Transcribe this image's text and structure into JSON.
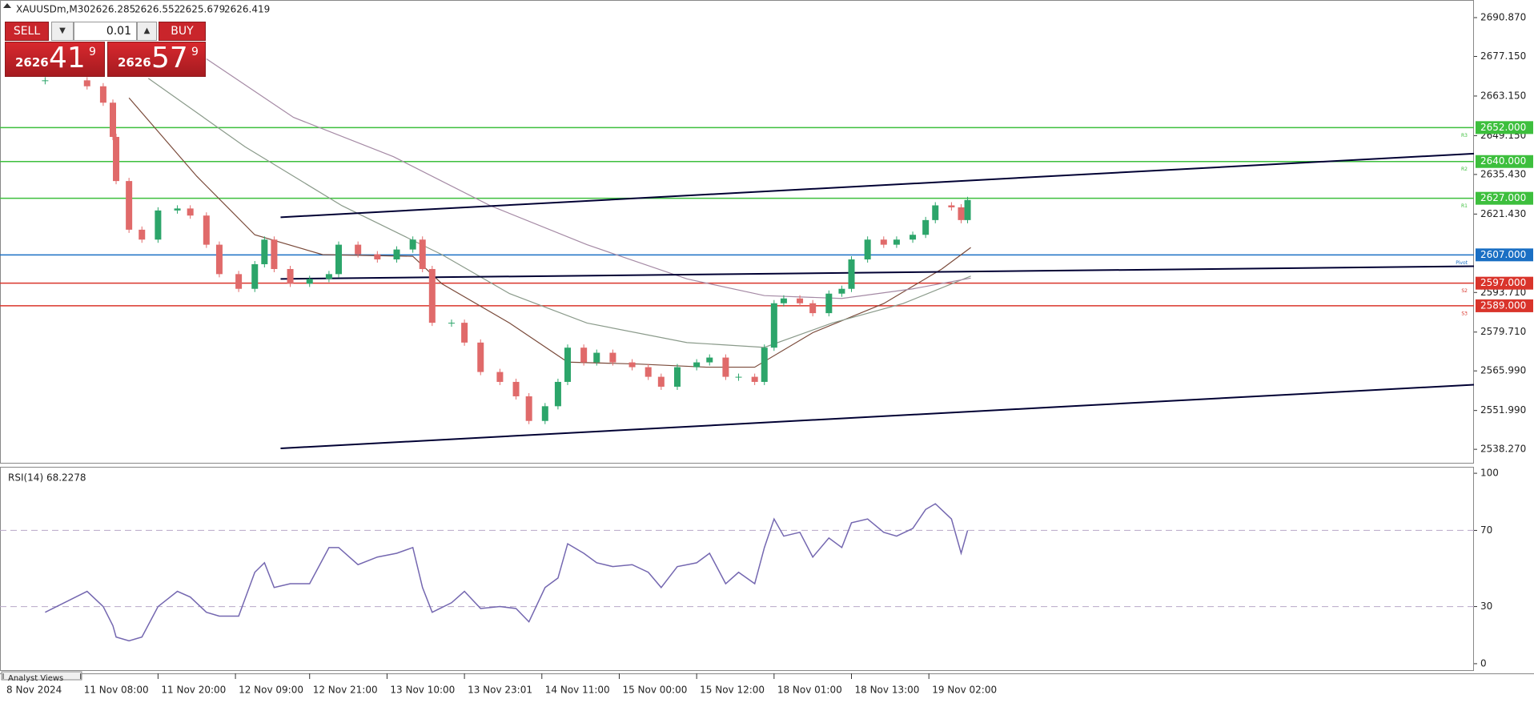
{
  "window": {
    "symbol": "XAUUSDm,M30",
    "quote": [
      2626.285,
      2626.552,
      2625.679,
      2626.419
    ],
    "bottom_tab": "Analyst Views"
  },
  "trade_panel": {
    "sell": "SELL",
    "buy": "BUY",
    "volume": "0.01",
    "bid": {
      "big": "2626",
      "main": "41",
      "sup": "9"
    },
    "ask": {
      "big": "2626",
      "main": "57",
      "sup": "9"
    }
  },
  "chart_data": {
    "type": "candlestick",
    "up_color": "#2ca56a",
    "down_color": "#e06a6a",
    "x": [
      14,
      27,
      32,
      35,
      36,
      40,
      44,
      49,
      55,
      59,
      64,
      68,
      74,
      79,
      82,
      85,
      90,
      96,
      102,
      105,
      111,
      117,
      123,
      128,
      131,
      134,
      140,
      144,
      149,
      155,
      160,
      164,
      169,
      173,
      176,
      181,
      185,
      190,
      196,
      201,
      205,
      210,
      216,
      220,
      225,
      229,
      234,
      237,
      240,
      243,
      248,
      252,
      257,
      261,
      264,
      269,
      274,
      278,
      283,
      287,
      290,
      295,
      298,
      300
    ],
    "values": [
      2668.7,
      2666.6,
      2660.8,
      2648.7,
      2633.1,
      2615.9,
      2612.4,
      2622.7,
      2623.4,
      2620.9,
      2610.6,
      2600.2,
      2595.0,
      2603.7,
      2612.4,
      2602.0,
      2596.8,
      2598.5,
      2600.2,
      2610.6,
      2607.2,
      2605.4,
      2608.9,
      2612.4,
      2602.0,
      2583.0,
      2583.0,
      2576.0,
      2565.6,
      2562.1,
      2557.0,
      2548.3,
      2553.5,
      2562.1,
      2574.2,
      2569.0,
      2572.4,
      2569.0,
      2567.3,
      2563.9,
      2560.4,
      2567.3,
      2569.0,
      2570.7,
      2563.9,
      2563.9,
      2562.1,
      2574.2,
      2589.9,
      2591.6,
      2589.9,
      2586.4,
      2593.3,
      2595.0,
      2605.4,
      2612.4,
      2610.6,
      2612.4,
      2614.1,
      2619.3,
      2624.5,
      2623.8,
      2619.3,
      2626.4
    ],
    "xlim": [
      0,
      457
    ],
    "ylim": [
      2533.5,
      2697.1
    ],
    "yticks": [
      {
        "value": 2690.87,
        "label": "2690.870"
      },
      {
        "value": 2677.15,
        "label": "2677.150"
      },
      {
        "value": 2663.15,
        "label": "2663.150"
      },
      {
        "value": 2649.15,
        "label": "2649.150"
      },
      {
        "value": 2635.43,
        "label": "2635.430"
      },
      {
        "value": 2621.43,
        "label": "2621.430"
      },
      {
        "value": 2593.71,
        "label": "2593.710"
      },
      {
        "value": 2579.71,
        "label": "2579.710"
      },
      {
        "value": 2565.99,
        "label": "2565.990"
      },
      {
        "value": 2551.99,
        "label": "2551.990"
      },
      {
        "value": 2538.27,
        "label": "2538.270"
      }
    ],
    "xticks": [
      {
        "value": 1,
        "label": "8 Nov 2024"
      },
      {
        "value": 25,
        "label": "11 Nov 08:00"
      },
      {
        "value": 49,
        "label": "11 Nov 20:00"
      },
      {
        "value": 73,
        "label": "12 Nov 09:00"
      },
      {
        "value": 96,
        "label": "12 Nov 21:00"
      },
      {
        "value": 120,
        "label": "13 Nov 10:00"
      },
      {
        "value": 144,
        "label": "13 Nov 23:01"
      },
      {
        "value": 168,
        "label": "14 Nov 11:00"
      },
      {
        "value": 192,
        "label": "15 Nov 00:00"
      },
      {
        "value": 216,
        "label": "15 Nov 12:00"
      },
      {
        "value": 240,
        "label": "18 Nov 01:00"
      },
      {
        "value": 264,
        "label": "18 Nov 13:00"
      },
      {
        "value": 288,
        "label": "19 Nov 02:00"
      }
    ],
    "levels": [
      {
        "value": 2652,
        "label": "2652.000",
        "name": "R3",
        "color": "#3dbf3d"
      },
      {
        "value": 2640,
        "label": "2640.000",
        "name": "R2",
        "color": "#3dbf3d"
      },
      {
        "value": 2627,
        "label": "2627.000",
        "name": "R1",
        "color": "#3dbf3d"
      },
      {
        "value": 2607,
        "label": "2607.000",
        "name": "Pivot",
        "color": "#1a6fc4"
      },
      {
        "value": 2597,
        "label": "2597.000",
        "name": "S2",
        "color": "#d9342b"
      },
      {
        "value": 2589,
        "label": "2589.000",
        "name": "S3",
        "color": "#d9342b"
      }
    ],
    "moving_averages": [
      {
        "color": "#7a4a3a",
        "x": [
          40,
          61,
          79,
          100,
          128,
          137,
          158,
          176,
          198,
          219,
          234,
          252,
          274,
          292,
          301
        ],
        "values": [
          2662.5,
          2634.8,
          2614.1,
          2607.1,
          2606.5,
          2596.8,
          2582.9,
          2569.1,
          2568.4,
          2567.3,
          2567.3,
          2579.5,
          2589.8,
          2602.0,
          2609.6
        ]
      },
      {
        "color": "#8a9a8a",
        "x": [
          46,
          76,
          106,
          137,
          158,
          182,
          213,
          237,
          258,
          280,
          301
        ],
        "values": [
          2669.4,
          2645.2,
          2624.4,
          2607.1,
          2593.3,
          2582.9,
          2576.0,
          2574.3,
          2582.9,
          2589.8,
          2599.5
        ]
      },
      {
        "color": "#a58aa5",
        "x": [
          64,
          91,
          122,
          152,
          182,
          213,
          237,
          261,
          283,
          301
        ],
        "values": [
          2676.3,
          2655.6,
          2641.7,
          2624.4,
          2610.6,
          2598.5,
          2592.6,
          2591.6,
          2595.0,
          2598.8
        ]
      }
    ],
    "trend_lines": [
      {
        "x": [
          87,
          457
        ],
        "values": [
          2620.3,
          2642.8
        ]
      },
      {
        "x": [
          87,
          457
        ],
        "values": [
          2598.5,
          2603.0
        ]
      },
      {
        "x": [
          87,
          457
        ],
        "values": [
          2538.6,
          2561.1
        ]
      }
    ],
    "rsi": {
      "title": "RSI(14) 68.2278",
      "color": "#7467b0",
      "values": [
        27,
        38,
        30,
        20,
        14,
        12,
        14,
        30,
        38,
        35,
        27,
        25,
        25,
        48,
        53,
        40,
        42,
        42,
        61,
        61,
        52,
        56,
        58,
        61,
        40,
        27,
        32,
        38,
        29,
        30,
        29,
        22,
        40,
        45,
        63,
        58,
        53,
        51,
        52,
        48,
        40,
        51,
        53,
        58,
        42,
        48,
        42,
        61,
        76,
        67,
        69,
        56,
        66,
        61,
        74,
        76,
        69,
        67,
        71,
        81,
        84,
        76,
        58,
        70
      ],
      "ylim": [
        -3.4,
        103.4
      ],
      "yticks": [
        100,
        70,
        30,
        0
      ],
      "levels": [
        70,
        30
      ]
    }
  }
}
